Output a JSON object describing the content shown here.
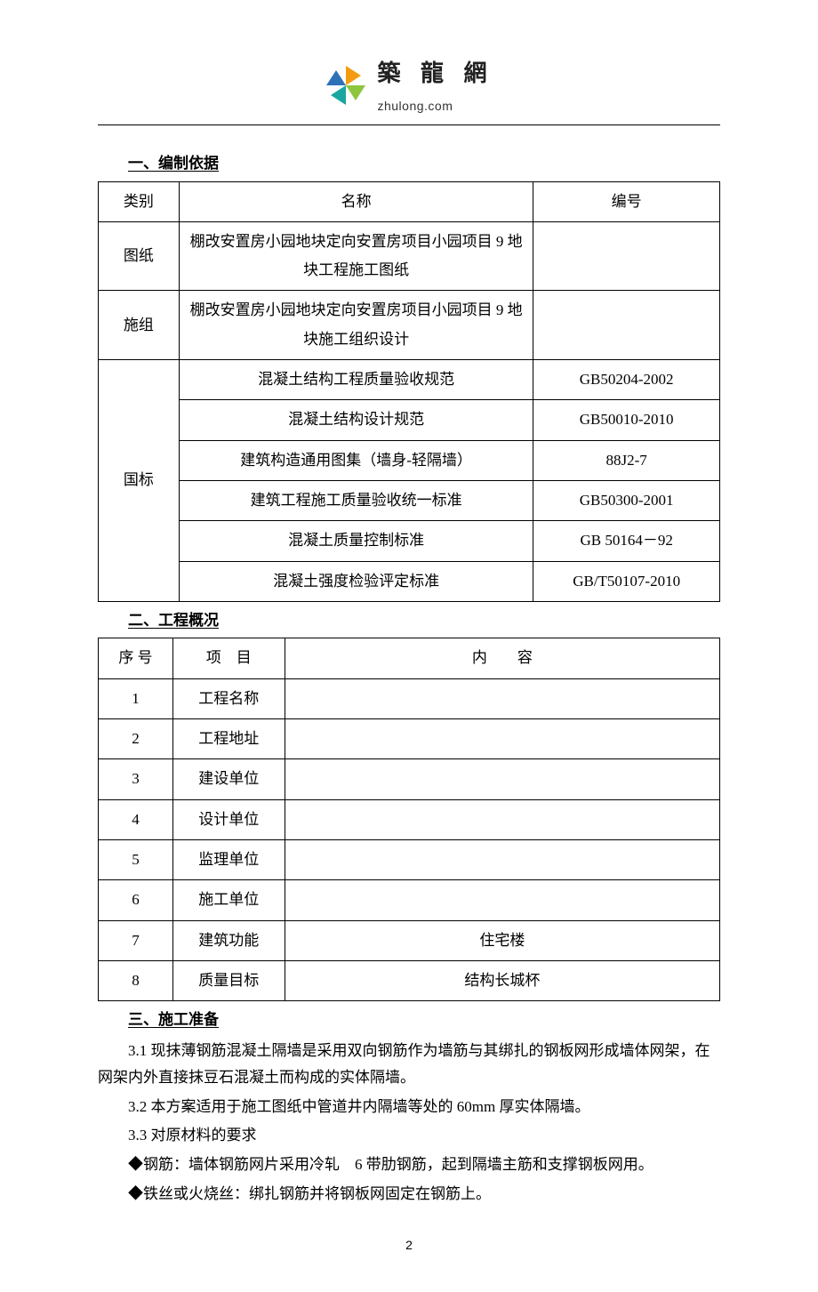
{
  "logo": {
    "cn": "築 龍 網",
    "en": "zhulong.com",
    "colors": {
      "blue": "#2f71b8",
      "green": "#8cc63f",
      "orange": "#f39c12",
      "teal": "#1aa6a0"
    }
  },
  "section1": {
    "title": "一、编制依据",
    "headers": {
      "category": "类别",
      "name": "名称",
      "code": "编号"
    },
    "groups": [
      {
        "category": "图纸",
        "rows": [
          {
            "name": "棚改安置房小园地块定向安置房项目小园项目 9 地块工程施工图纸",
            "code": ""
          }
        ]
      },
      {
        "category": "施组",
        "rows": [
          {
            "name": "棚改安置房小园地块定向安置房项目小园项目 9 地块施工组织设计",
            "code": ""
          }
        ]
      },
      {
        "category": "国标",
        "rows": [
          {
            "name": "混凝土结构工程质量验收规范",
            "code": "GB50204-2002"
          },
          {
            "name": "混凝土结构设计规范",
            "code": "GB50010-2010"
          },
          {
            "name": "建筑构造通用图集（墙身-轻隔墙）",
            "code": "88J2-7"
          },
          {
            "name": "建筑工程施工质量验收统一标准",
            "code": "GB50300-2001"
          },
          {
            "name": "混凝土质量控制标准",
            "code": "GB 50164－92"
          },
          {
            "name": "混凝土强度检验评定标准",
            "code": "GB/T50107-2010"
          }
        ]
      }
    ]
  },
  "section2": {
    "title": "二、工程概况",
    "headers": {
      "index": "序 号",
      "item": "项　目",
      "content": "内　　容"
    },
    "rows": [
      {
        "idx": "1",
        "item": "工程名称",
        "content": ""
      },
      {
        "idx": "2",
        "item": "工程地址",
        "content": ""
      },
      {
        "idx": "3",
        "item": "建设单位",
        "content": ""
      },
      {
        "idx": "4",
        "item": "设计单位",
        "content": ""
      },
      {
        "idx": "5",
        "item": "监理单位",
        "content": ""
      },
      {
        "idx": "6",
        "item": "施工单位",
        "content": ""
      },
      {
        "idx": "7",
        "item": "建筑功能",
        "content": "住宅楼"
      },
      {
        "idx": "8",
        "item": "质量目标",
        "content": "结构长城杯"
      }
    ]
  },
  "section3": {
    "title": "三、施工准备",
    "paras": [
      "3.1 现抹薄钢筋混凝土隔墙是采用双向钢筋作为墙筋与其绑扎的钢板网形成墙体网架，在网架内外直接抹豆石混凝土而构成的实体隔墙。",
      "3.2 本方案适用于施工图纸中管道井内隔墙等处的 60mm 厚实体隔墙。",
      "3.3 对原材料的要求",
      "◆钢筋：墙体钢筋网片采用冷轧　6 带肋钢筋，起到隔墙主筋和支撑钢板网用。",
      "◆铁丝或火烧丝：绑扎钢筋并将钢板网固定在钢筋上。"
    ]
  },
  "page_number": "2"
}
